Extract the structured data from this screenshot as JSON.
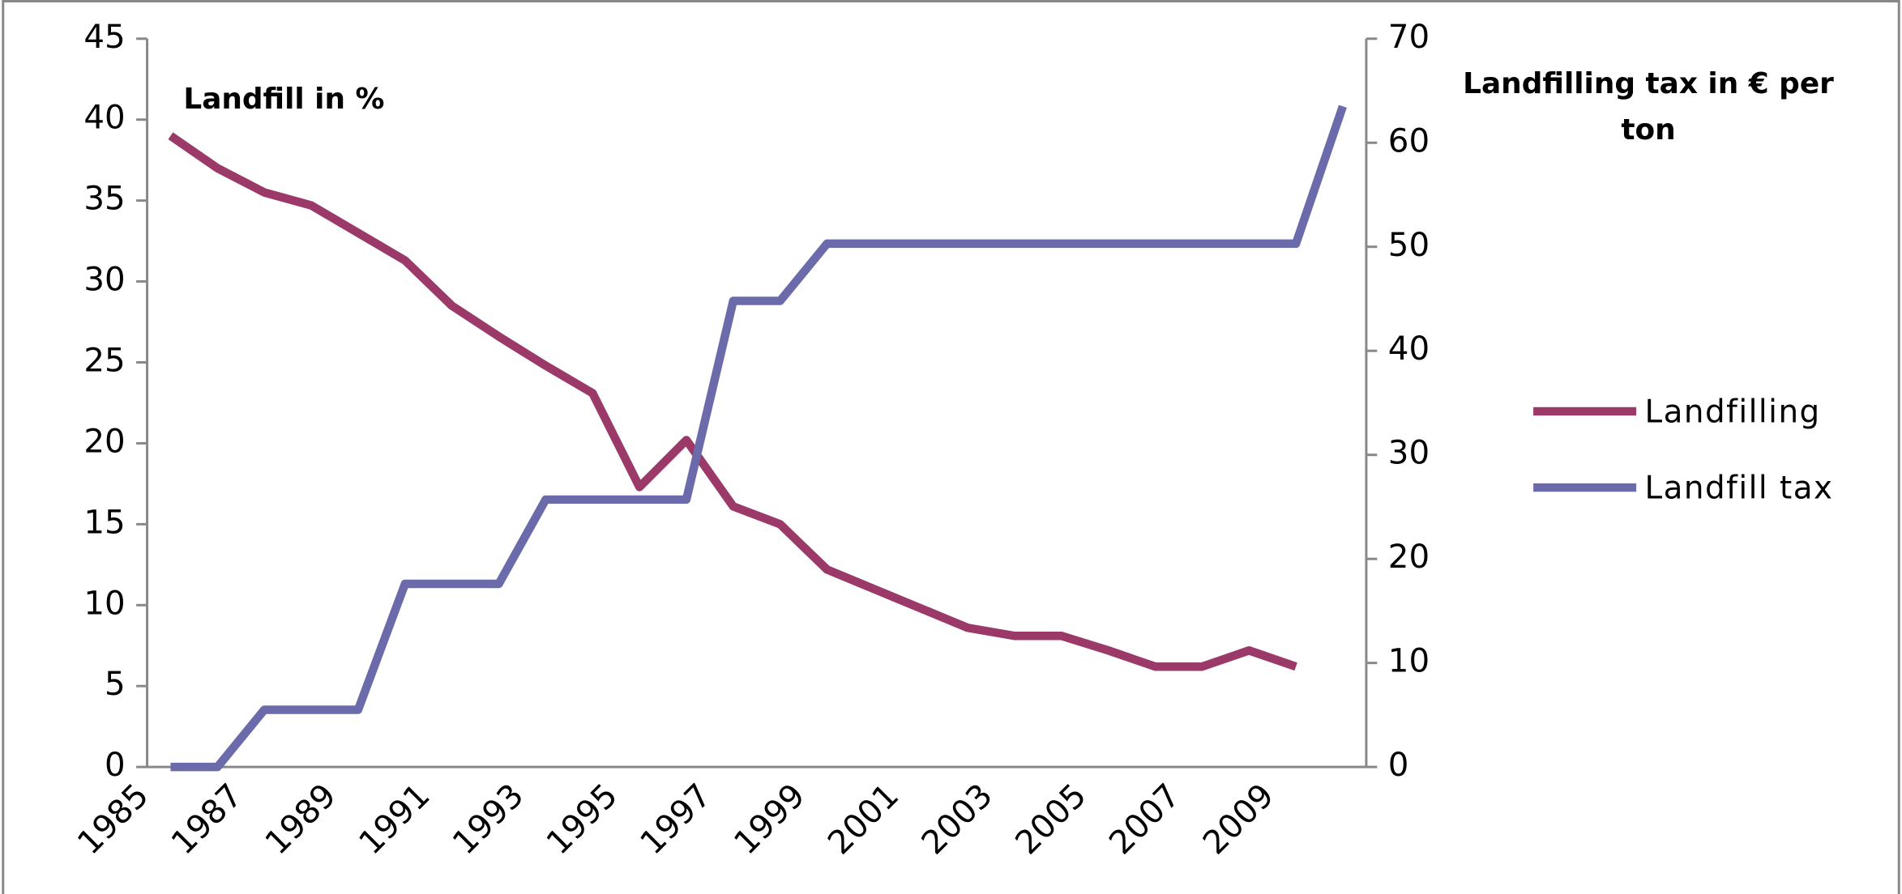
{
  "chart_data": {
    "type": "line",
    "annotation_left": "Landfill in %",
    "annotation_right": "Landfilling tax in € per ton",
    "categories": [
      "1985",
      null,
      "1987",
      null,
      "1989",
      null,
      "1991",
      null,
      "1993",
      null,
      "1995",
      null,
      "1997",
      null,
      "1999",
      null,
      "2001",
      null,
      "2003",
      null,
      "2005",
      null,
      "2007",
      null,
      "2009",
      null
    ],
    "series": [
      {
        "name": "Landfilling",
        "color": "#9b3a68",
        "values": [
          39,
          37,
          35.5,
          34.7,
          33,
          31.3,
          28.5,
          26.6,
          24.8,
          23.1,
          17.3,
          20.2,
          16.1,
          15,
          12.2,
          11,
          9.8,
          8.6,
          8.1,
          8.1,
          7.2,
          6.2,
          6.2,
          7.2,
          6.2,
          null
        ]
      },
      {
        "name": "Landfill tax",
        "color": "#6b6bab",
        "axis": "y2",
        "values": [
          0,
          0,
          5.5,
          5.5,
          5.5,
          17.6,
          17.6,
          17.6,
          25.7,
          25.7,
          25.7,
          25.7,
          44.8,
          44.8,
          50.3,
          50.3,
          50.3,
          50.3,
          50.3,
          50.3,
          50.3,
          50.3,
          50.3,
          50.3,
          50.3,
          63.5
        ]
      }
    ],
    "ylim": [
      0,
      45
    ],
    "yticks": [
      0,
      5,
      10,
      15,
      20,
      25,
      30,
      35,
      40,
      45
    ],
    "y2lim": [
      0,
      70
    ],
    "y2ticks": [
      0,
      10,
      20,
      30,
      40,
      50,
      60,
      70
    ],
    "legend": "right"
  }
}
